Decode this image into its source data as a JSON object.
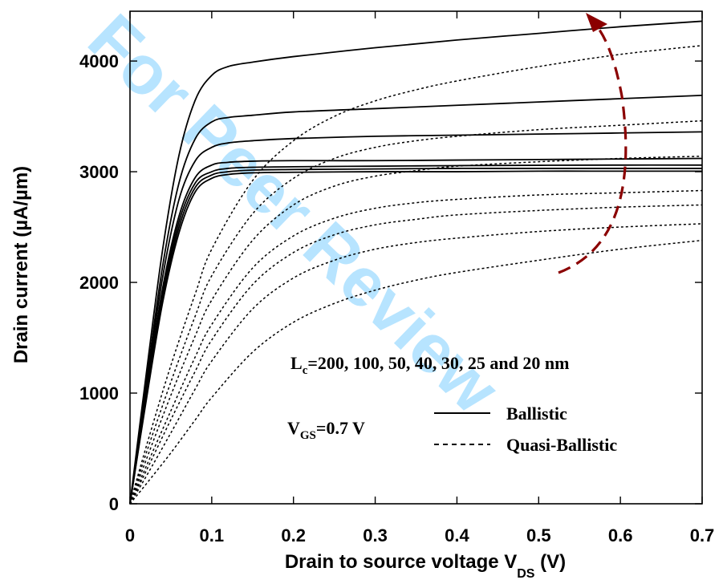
{
  "chart_data": {
    "type": "line",
    "xlabel": "Drain to source voltage V",
    "xlabel_sub": "DS",
    "xlabel_unit": " (V)",
    "ylabel": "Drain current (µA/µm)",
    "xlim": [
      0,
      0.7
    ],
    "ylim": [
      0,
      4450
    ],
    "xticks": [
      0,
      0.1,
      0.2,
      0.3,
      0.4,
      0.5,
      0.6,
      0.7
    ],
    "xtick_labels": [
      "0",
      "0.1",
      "0.2",
      "0.3",
      "0.4",
      "0.5",
      "0.6",
      "0.7"
    ],
    "yticks": [
      0,
      1000,
      2000,
      3000,
      4000
    ],
    "ytick_labels": [
      "0",
      "1000",
      "2000",
      "3000",
      "4000"
    ],
    "grid": false,
    "legend_position": "lower-right",
    "annotation_lc": "L",
    "annotation_lc_sub": "c",
    "annotation_lc_rest": "=200, 100, 50, 40, 30, 25 and 20 nm",
    "annotation_vgs": "V",
    "annotation_vgs_sub": "GS",
    "annotation_vgs_rest": "=0.7 V",
    "arrow_color": "#8b0000",
    "watermark": "For Peer Review",
    "watermark_color": "#00a2ff",
    "series": [
      {
        "name": "Ballistic",
        "style": "solid",
        "curves": [
          {
            "x": [
              0,
              0.02,
              0.04,
              0.06,
              0.08,
              0.1,
              0.12,
              0.15,
              0.2,
              0.3,
              0.4,
              0.5,
              0.6,
              0.7
            ],
            "y": [
              0,
              1180,
              2300,
              3150,
              3650,
              3870,
              3950,
              3990,
              4040,
              4120,
              4190,
              4250,
              4310,
              4360
            ]
          },
          {
            "x": [
              0,
              0.02,
              0.04,
              0.06,
              0.08,
              0.1,
              0.12,
              0.15,
              0.2,
              0.3,
              0.4,
              0.5,
              0.6,
              0.7
            ],
            "y": [
              0,
              1100,
              2150,
              2900,
              3300,
              3450,
              3490,
              3510,
              3540,
              3570,
              3600,
              3630,
              3660,
              3690
            ]
          },
          {
            "x": [
              0,
              0.02,
              0.04,
              0.06,
              0.08,
              0.1,
              0.12,
              0.15,
              0.2,
              0.3,
              0.4,
              0.5,
              0.6,
              0.7
            ],
            "y": [
              0,
              1050,
              2050,
              2750,
              3100,
              3220,
              3260,
              3280,
              3300,
              3320,
              3330,
              3340,
              3350,
              3360
            ]
          },
          {
            "x": [
              0,
              0.02,
              0.04,
              0.06,
              0.08,
              0.1,
              0.12,
              0.15,
              0.2,
              0.3,
              0.4,
              0.5,
              0.6,
              0.7
            ],
            "y": [
              0,
              1000,
              1950,
              2600,
              2950,
              3060,
              3085,
              3095,
              3100,
              3100,
              3105,
              3110,
              3115,
              3120
            ]
          },
          {
            "x": [
              0,
              0.02,
              0.04,
              0.06,
              0.08,
              0.1,
              0.12,
              0.15,
              0.2,
              0.3,
              0.4,
              0.5,
              0.6,
              0.7
            ],
            "y": [
              0,
              980,
              1900,
              2550,
              2900,
              3000,
              3030,
              3040,
              3045,
              3050,
              3055,
              3058,
              3060,
              3060
            ]
          },
          {
            "x": [
              0,
              0.02,
              0.04,
              0.06,
              0.08,
              0.1,
              0.12,
              0.15,
              0.2,
              0.3,
              0.4,
              0.5,
              0.6,
              0.7
            ],
            "y": [
              0,
              960,
              1860,
              2500,
              2860,
              2970,
              3000,
              3015,
              3020,
              3025,
              3030,
              3030,
              3030,
              3030
            ]
          },
          {
            "x": [
              0,
              0.02,
              0.04,
              0.06,
              0.08,
              0.1,
              0.12,
              0.15,
              0.2,
              0.3,
              0.4,
              0.5,
              0.6,
              0.7
            ],
            "y": [
              0,
              940,
              1820,
              2450,
              2820,
              2940,
              2975,
              2990,
              2995,
              3000,
              3000,
              3005,
              3005,
              3005
            ]
          }
        ]
      },
      {
        "name": "Quasi-Ballistic",
        "style": "dashed",
        "curves": [
          {
            "x": [
              0,
              0.02,
              0.05,
              0.08,
              0.1,
              0.15,
              0.2,
              0.25,
              0.3,
              0.35,
              0.4,
              0.5,
              0.6,
              0.7
            ],
            "y": [
              0,
              520,
              1250,
              1900,
              2300,
              2920,
              3280,
              3500,
              3640,
              3740,
              3820,
              3950,
              4060,
              4140
            ]
          },
          {
            "x": [
              0,
              0.02,
              0.05,
              0.08,
              0.1,
              0.15,
              0.2,
              0.25,
              0.3,
              0.35,
              0.4,
              0.5,
              0.6,
              0.7
            ],
            "y": [
              0,
              460,
              1100,
              1700,
              2060,
              2620,
              2940,
              3120,
              3220,
              3280,
              3320,
              3380,
              3420,
              3460
            ]
          },
          {
            "x": [
              0,
              0.02,
              0.05,
              0.08,
              0.1,
              0.15,
              0.2,
              0.25,
              0.3,
              0.35,
              0.4,
              0.5,
              0.6,
              0.7
            ],
            "y": [
              0,
              400,
              980,
              1520,
              1840,
              2380,
              2700,
              2870,
              2960,
              3010,
              3050,
              3090,
              3120,
              3140
            ]
          },
          {
            "x": [
              0,
              0.02,
              0.05,
              0.08,
              0.1,
              0.15,
              0.2,
              0.25,
              0.3,
              0.35,
              0.4,
              0.5,
              0.6,
              0.7
            ],
            "y": [
              0,
              340,
              840,
              1330,
              1620,
              2130,
              2420,
              2580,
              2670,
              2720,
              2750,
              2790,
              2810,
              2830
            ]
          },
          {
            "x": [
              0,
              0.02,
              0.05,
              0.08,
              0.1,
              0.15,
              0.2,
              0.25,
              0.3,
              0.35,
              0.4,
              0.5,
              0.6,
              0.7
            ],
            "y": [
              0,
              300,
              760,
              1200,
              1480,
              1980,
              2270,
              2430,
              2520,
              2570,
              2610,
              2650,
              2680,
              2700
            ]
          },
          {
            "x": [
              0,
              0.02,
              0.05,
              0.08,
              0.1,
              0.15,
              0.2,
              0.25,
              0.3,
              0.35,
              0.4,
              0.5,
              0.6,
              0.7
            ],
            "y": [
              0,
              250,
              640,
              1040,
              1290,
              1760,
              2040,
              2200,
              2300,
              2360,
              2400,
              2460,
              2500,
              2530
            ]
          },
          {
            "x": [
              0,
              0.02,
              0.05,
              0.08,
              0.1,
              0.15,
              0.2,
              0.25,
              0.3,
              0.35,
              0.4,
              0.5,
              0.6,
              0.7
            ],
            "y": [
              0,
              180,
              460,
              760,
              960,
              1370,
              1640,
              1810,
              1930,
              2020,
              2090,
              2200,
              2300,
              2380
            ]
          }
        ]
      }
    ]
  }
}
